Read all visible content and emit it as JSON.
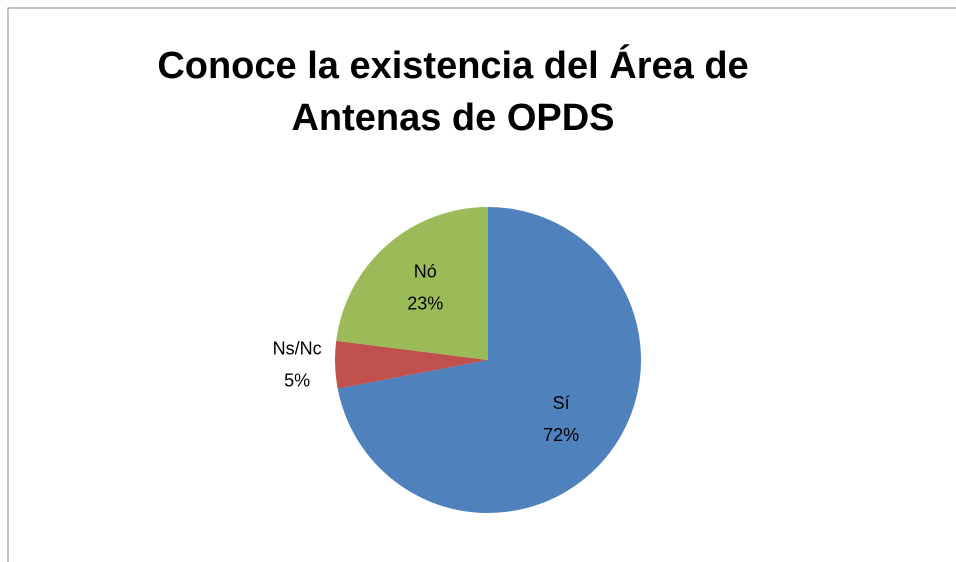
{
  "chart_data": {
    "type": "pie",
    "title": "Conoce la existencia del Área de Antenas de OPDS",
    "categories": [
      "Sí",
      "Ns/Nc",
      "Nó"
    ],
    "values": [
      72,
      5,
      23
    ],
    "value_labels": [
      "72%",
      "5%",
      "23%"
    ],
    "colors": [
      "#4f81bd",
      "#c0504d",
      "#9bbb59"
    ]
  }
}
